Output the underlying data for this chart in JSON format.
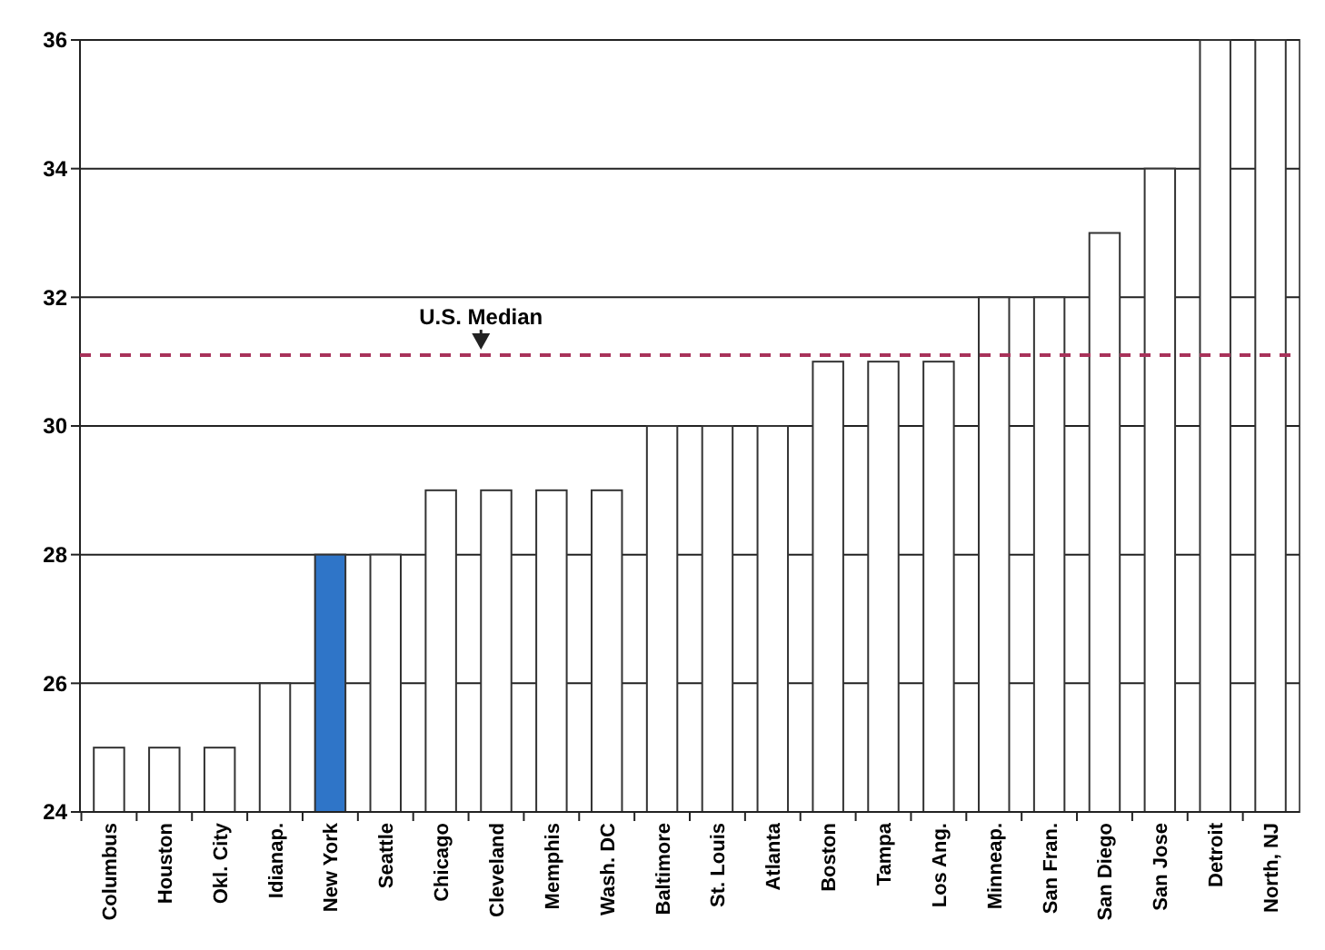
{
  "chart_data": {
    "type": "bar",
    "categories": [
      "Columbus",
      "Houston",
      "Okl. City",
      "Idianap.",
      "New York",
      "Seattle",
      "Chicago",
      "Cleveland",
      "Memphis",
      "Wash. DC",
      "Baltimore",
      "St. Louis",
      "Atlanta",
      "Boston",
      "Tampa",
      "Los Ang.",
      "Minneap.",
      "San Fran.",
      "San Diego",
      "San Jose",
      "Detroit",
      "North, NJ"
    ],
    "values": [
      25,
      25,
      25,
      26,
      28,
      28,
      29,
      29,
      29,
      29,
      30,
      30,
      30,
      31,
      31,
      31,
      32,
      32,
      33,
      34,
      36,
      36
    ],
    "colors": [
      "#ffffff",
      "#ffffff",
      "#ffffff",
      "#ffffff",
      "#2f75c8",
      "#ffffff",
      "#ffffff",
      "#ffffff",
      "#ffffff",
      "#ffffff",
      "#ffffff",
      "#ffffff",
      "#ffffff",
      "#ffffff",
      "#ffffff",
      "#ffffff",
      "#ffffff",
      "#ffffff",
      "#ffffff",
      "#ffffff",
      "#ffffff",
      "#ffffff"
    ],
    "ylim": [
      24,
      36
    ],
    "yticks": [
      24,
      26,
      28,
      30,
      32,
      34,
      36
    ],
    "grid": "y",
    "ref_lines": [
      {
        "axis": "y",
        "value": 31.1,
        "label": "U.S. Median",
        "color": "#a8325a",
        "line_style": "dashed"
      }
    ]
  }
}
